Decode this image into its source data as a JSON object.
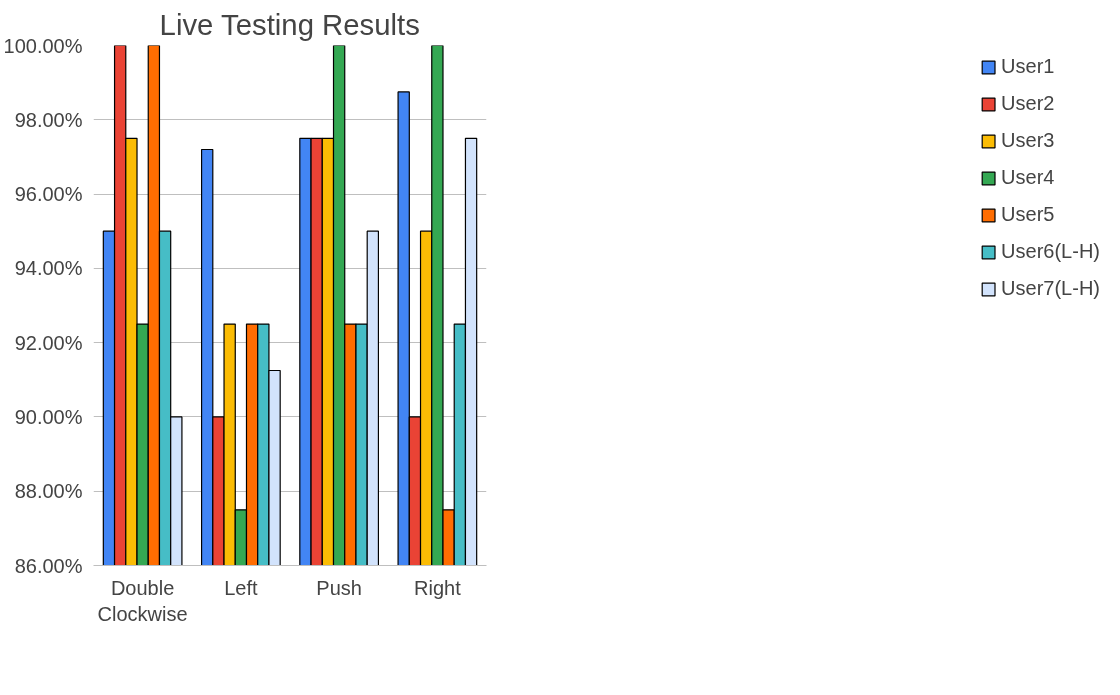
{
  "chart_data": {
    "type": "bar",
    "title": "Live Testing Results",
    "categories": [
      "Double Clockwise",
      "Left",
      "Push",
      "Right"
    ],
    "series": [
      {
        "name": "User1",
        "color": "#4285f4",
        "values": [
          95,
          97.2,
          97.5,
          98.75
        ]
      },
      {
        "name": "User2",
        "color": "#ea4335",
        "values": [
          100,
          90,
          97.5,
          90
        ]
      },
      {
        "name": "User3",
        "color": "#fbbc04",
        "values": [
          97.5,
          92.5,
          97.5,
          95
        ]
      },
      {
        "name": "User4",
        "color": "#34a853",
        "values": [
          92.5,
          87.5,
          100,
          100
        ]
      },
      {
        "name": "User5",
        "color": "#ff6d01",
        "values": [
          100,
          92.5,
          92.5,
          87.5
        ]
      },
      {
        "name": "User6(L-H)",
        "color": "#46bdc6",
        "values": [
          95,
          92.5,
          92.5,
          92.5
        ]
      },
      {
        "name": "User7(L-H)",
        "color": "#d2e3fc",
        "values": [
          90,
          91.25,
          95,
          97.5
        ]
      }
    ],
    "ylim": [
      86,
      100
    ],
    "yticks": [
      {
        "value": 86,
        "label": "86.00%"
      },
      {
        "value": 88,
        "label": "88.00%"
      },
      {
        "value": 90,
        "label": "90.00%"
      },
      {
        "value": 92,
        "label": "92.00%"
      },
      {
        "value": 94,
        "label": "94.00%"
      },
      {
        "value": 96,
        "label": "96.00%"
      },
      {
        "value": 98,
        "label": "98.00%"
      },
      {
        "value": 100,
        "label": "100.00%"
      }
    ],
    "grid": "y",
    "legend": "right"
  }
}
